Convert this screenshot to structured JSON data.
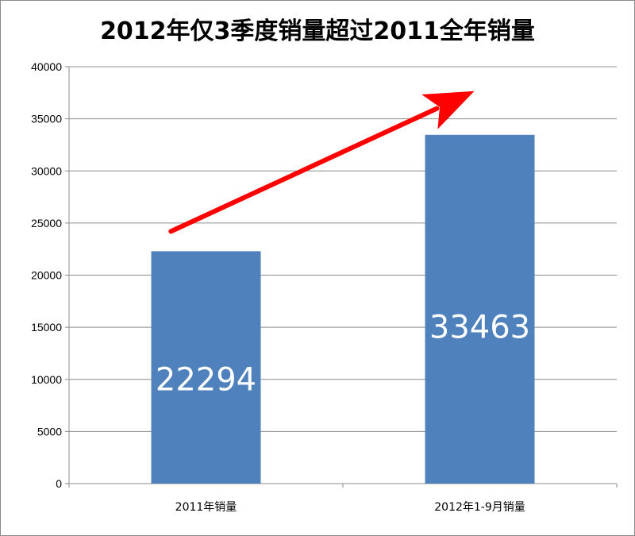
{
  "chart_data": {
    "type": "bar",
    "title": "2012年仅3季度销量超过2011全年销量",
    "categories": [
      "2011年销量",
      "2012年1-9月销量"
    ],
    "values": [
      22294,
      33463
    ],
    "data_labels": [
      "22294",
      "33463"
    ],
    "ylim": [
      0,
      40000
    ],
    "yticks": [
      0,
      5000,
      10000,
      15000,
      20000,
      25000,
      30000,
      35000,
      40000
    ],
    "xlabel": "",
    "ylabel": "",
    "grid": true,
    "legend": "none",
    "colors": {
      "bar": "#4f81bd",
      "grid": "#8c8c8c",
      "arrow": "#ff0000",
      "data_label": "#ffffff"
    }
  }
}
